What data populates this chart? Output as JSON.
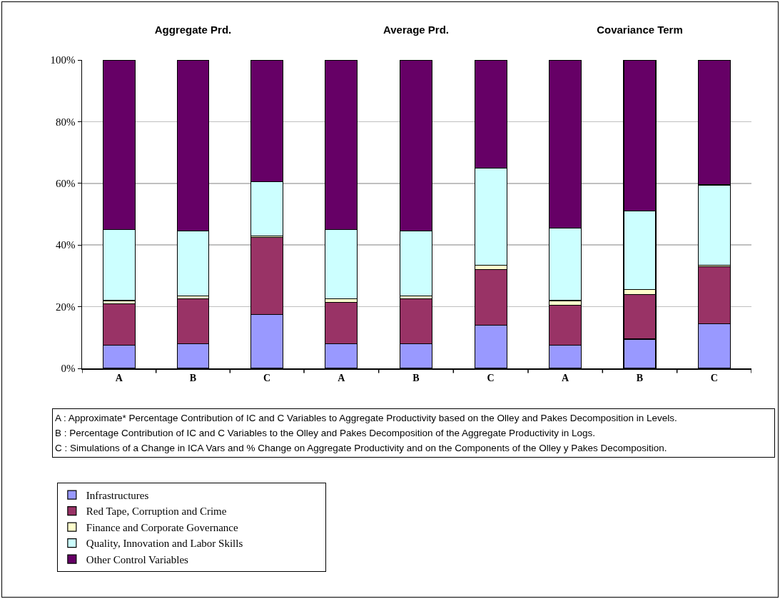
{
  "chart_data": [
    {
      "type": "bar",
      "stacked": true,
      "title": "Aggregate Prd.",
      "categories": [
        "A",
        "B",
        "C"
      ],
      "series": [
        {
          "name": "Infrastructures",
          "color": "#9999ff",
          "values": [
            7.5,
            8,
            17.5
          ]
        },
        {
          "name": "Red Tape, Corruption and Crime",
          "color": "#993366",
          "values": [
            13.5,
            14.5,
            25
          ]
        },
        {
          "name": "Finance and Corporate Governance",
          "color": "#ffffcc",
          "values": [
            1,
            1,
            0.5
          ]
        },
        {
          "name": "Quality, Innovation and Labor Skills",
          "color": "#ccffff",
          "values": [
            23,
            21,
            17.5
          ]
        },
        {
          "name": "Other Control Variables",
          "color": "#660066",
          "values": [
            55,
            55.5,
            39.5
          ]
        }
      ],
      "ylim": [
        0,
        100
      ],
      "yticks": [
        {
          "value": 0,
          "label": "0%"
        },
        {
          "value": 20,
          "label": "20%"
        },
        {
          "value": 40,
          "label": "40%"
        },
        {
          "value": 60,
          "label": "60%"
        },
        {
          "value": 80,
          "label": "80%"
        },
        {
          "value": 100,
          "label": "100%"
        }
      ],
      "grid": "y",
      "legend": "bottom",
      "annotations": [
        "A : Approximate* Percentage Contribution of IC and C Variables to Aggregate Productivity based on the Olley and Pakes Decomposition in Levels.",
        "B : Percentage Contribution of IC and C Variables to the Olley and Pakes Decomposition of the Aggregate Productivity in Logs.",
        "C : Simulations of a Change in ICA Vars and % Change on Aggregate Productivity and on the Components of the Olley y Pakes Decomposition."
      ]
    },
    {
      "type": "bar",
      "stacked": true,
      "title": "Average Prd.",
      "categories": [
        "A",
        "B",
        "C"
      ],
      "series": [
        {
          "color": "#9999ff",
          "values": [
            8,
            8,
            14
          ]
        },
        {
          "color": "#993366",
          "values": [
            13.5,
            14.5,
            18
          ]
        },
        {
          "color": "#ffffcc",
          "values": [
            1,
            1,
            1.5
          ]
        },
        {
          "color": "#ccffff",
          "values": [
            22.5,
            21,
            31.5
          ]
        },
        {
          "color": "#660066",
          "values": [
            55,
            55.5,
            35
          ]
        }
      ],
      "ylim": [
        0,
        100
      ],
      "yticks": [
        0,
        20,
        40,
        60,
        80,
        100
      ],
      "grid": "y",
      "tick_labels": "x"
    },
    {
      "type": "bar",
      "stacked": true,
      "title": "Covariance Term",
      "categories": [
        "A",
        "B",
        "C"
      ],
      "series": [
        {
          "color": "#9999ff",
          "values": [
            7.5,
            9.5,
            14.5
          ]
        },
        {
          "color": "#993366",
          "values": [
            13,
            14.5,
            18.5
          ]
        },
        {
          "color": "#ffffcc",
          "values": [
            1.5,
            1.5,
            0.5
          ]
        },
        {
          "color": "#ccffff",
          "values": [
            23.5,
            25.5,
            26
          ]
        },
        {
          "color": "#660066",
          "values": [
            54.5,
            49,
            40.5
          ]
        }
      ],
      "ylim": [
        0,
        100
      ],
      "yticks": [
        0,
        20,
        40,
        60,
        80,
        100
      ],
      "grid": "y",
      "tick_labels": "x"
    }
  ]
}
